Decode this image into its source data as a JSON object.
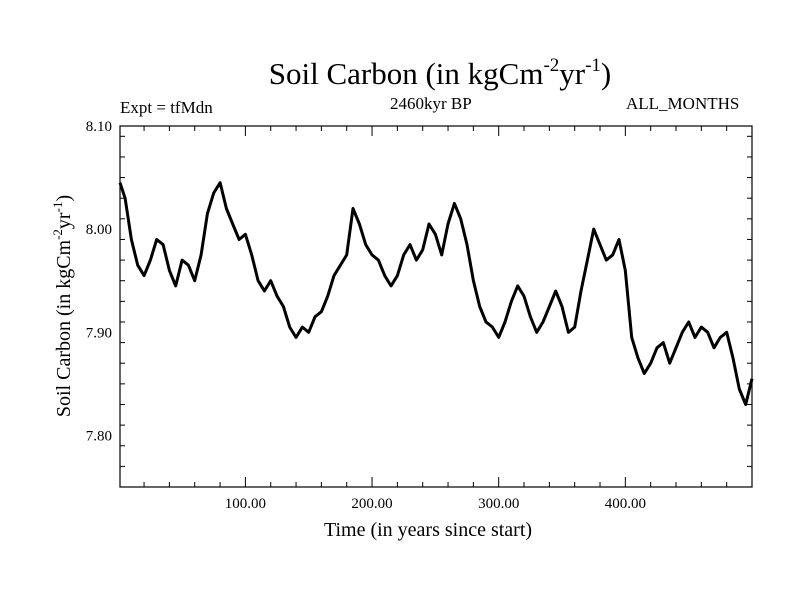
{
  "header": {
    "title_main": "Soil Carbon (in kgCm",
    "title_sup1": "-2",
    "title_mid": "yr",
    "title_sup2": "-1",
    "title_end": ")",
    "expt": "Expt = tfMdn",
    "period": "2460kyr BP",
    "months": "ALL_MONTHS"
  },
  "chart_data": {
    "type": "line",
    "title": "Soil Carbon (in kgCm-2yr-1)",
    "xlabel": "Time (in years since start)",
    "ylabel": "Soil Carbon (in kgCm-2yr-1)",
    "ylabel_parts": [
      "Soil Carbon (in kgCm",
      "-2",
      "yr",
      "-1",
      ")"
    ],
    "xlim": [
      1,
      500
    ],
    "ylim": [
      7.75,
      8.1
    ],
    "x_ticks": [
      100,
      200,
      300,
      400
    ],
    "x_tick_labels": [
      "100.00",
      "200.00",
      "300.00",
      "400.00"
    ],
    "y_ticks": [
      7.8,
      7.9,
      8.0,
      8.1
    ],
    "y_tick_labels": [
      "7.80",
      "7.90",
      "8.00",
      "8.10"
    ],
    "series": [
      {
        "name": "Soil Carbon",
        "color": "#000000",
        "x": [
          1,
          5,
          10,
          15,
          20,
          25,
          30,
          35,
          40,
          45,
          50,
          55,
          60,
          65,
          70,
          75,
          80,
          85,
          90,
          95,
          100,
          105,
          110,
          115,
          120,
          125,
          130,
          135,
          140,
          145,
          150,
          155,
          160,
          165,
          170,
          175,
          180,
          185,
          190,
          195,
          200,
          205,
          210,
          215,
          220,
          225,
          230,
          235,
          240,
          245,
          250,
          255,
          260,
          265,
          270,
          275,
          280,
          285,
          290,
          295,
          300,
          305,
          310,
          315,
          320,
          325,
          330,
          335,
          340,
          345,
          350,
          355,
          360,
          365,
          370,
          375,
          380,
          385,
          390,
          395,
          400,
          405,
          410,
          415,
          420,
          425,
          430,
          435,
          440,
          445,
          450,
          455,
          460,
          465,
          470,
          475,
          480,
          485,
          490,
          495,
          500
        ],
        "y": [
          8.045,
          8.03,
          7.99,
          7.965,
          7.955,
          7.97,
          7.99,
          7.985,
          7.96,
          7.945,
          7.97,
          7.965,
          7.95,
          7.975,
          8.015,
          8.035,
          8.045,
          8.02,
          8.005,
          7.99,
          7.995,
          7.975,
          7.95,
          7.94,
          7.95,
          7.935,
          7.925,
          7.905,
          7.895,
          7.905,
          7.9,
          7.915,
          7.92,
          7.935,
          7.955,
          7.965,
          7.975,
          8.02,
          8.005,
          7.985,
          7.975,
          7.97,
          7.955,
          7.945,
          7.955,
          7.975,
          7.985,
          7.97,
          7.98,
          8.005,
          7.995,
          7.975,
          8.005,
          8.025,
          8.01,
          7.985,
          7.95,
          7.925,
          7.91,
          7.905,
          7.895,
          7.91,
          7.93,
          7.945,
          7.935,
          7.915,
          7.9,
          7.91,
          7.925,
          7.94,
          7.925,
          7.9,
          7.905,
          7.94,
          7.97,
          8.0,
          7.985,
          7.97,
          7.975,
          7.99,
          7.96,
          7.895,
          7.875,
          7.86,
          7.87,
          7.885,
          7.89,
          7.87,
          7.885,
          7.9,
          7.91,
          7.895,
          7.905,
          7.9,
          7.885,
          7.895,
          7.9,
          7.875,
          7.845,
          7.83,
          7.855
        ]
      }
    ]
  }
}
